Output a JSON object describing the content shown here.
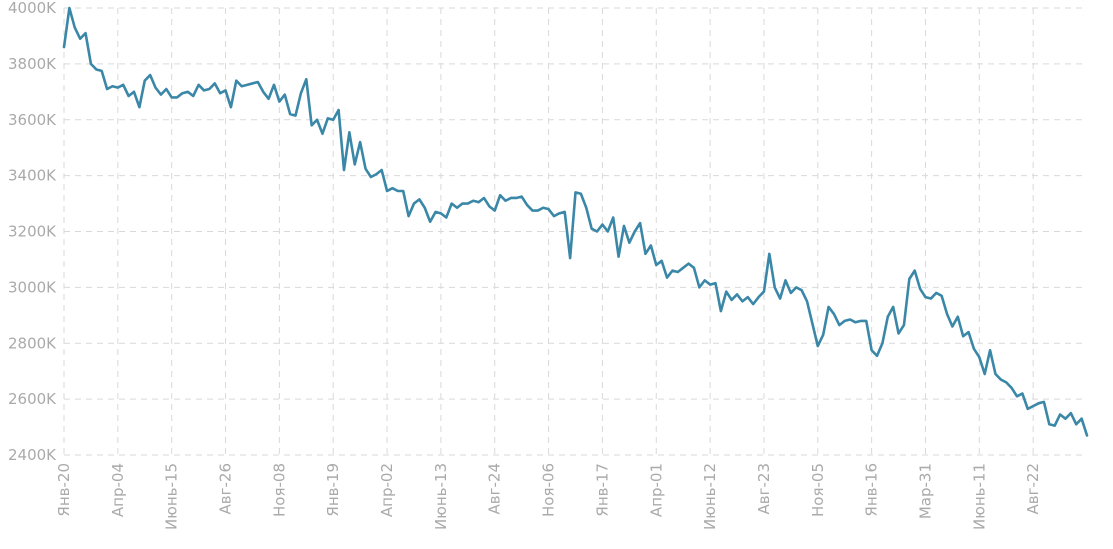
{
  "chart_data": {
    "type": "line",
    "grid": true,
    "y_tick_labels": [
      "4000K",
      "3800K",
      "3600K",
      "3400K",
      "3200K",
      "3000K",
      "2800K",
      "2600K",
      "2400K"
    ],
    "y_tick_values": [
      4000,
      3800,
      3600,
      3400,
      3200,
      3000,
      2800,
      2600,
      2400
    ],
    "ylim": [
      2400,
      4000
    ],
    "x_tick_labels": [
      "Янв-20",
      "Апр-04",
      "Июнь-15",
      "Авг-26",
      "Ноя-08",
      "Янв-19",
      "Апр-02",
      "Июнь-13",
      "Авг-24",
      "Ноя-06",
      "Янв-17",
      "Апр-01",
      "Июнь-12",
      "Авг-23",
      "Ноя-05",
      "Янв-16",
      "Мар-31",
      "Июнь-11",
      "Авг-22"
    ],
    "x_tick_indices": [
      0,
      10,
      20,
      30,
      40,
      50,
      60,
      70,
      80,
      90,
      100,
      110,
      120,
      130,
      140,
      150,
      160,
      170,
      180
    ],
    "series": [
      {
        "color": "#3a87a8",
        "values": [
          3860,
          4000,
          3930,
          3890,
          3910,
          3800,
          3780,
          3775,
          3710,
          3720,
          3715,
          3725,
          3685,
          3700,
          3645,
          3740,
          3760,
          3715,
          3690,
          3710,
          3680,
          3680,
          3695,
          3700,
          3685,
          3725,
          3705,
          3710,
          3730,
          3695,
          3705,
          3645,
          3740,
          3720,
          3725,
          3730,
          3735,
          3700,
          3675,
          3725,
          3665,
          3690,
          3620,
          3615,
          3695,
          3745,
          3580,
          3600,
          3550,
          3605,
          3600,
          3635,
          3420,
          3555,
          3440,
          3520,
          3425,
          3395,
          3405,
          3420,
          3345,
          3355,
          3345,
          3345,
          3255,
          3300,
          3315,
          3285,
          3235,
          3270,
          3265,
          3250,
          3300,
          3285,
          3300,
          3300,
          3310,
          3305,
          3320,
          3290,
          3275,
          3330,
          3310,
          3320,
          3320,
          3325,
          3295,
          3275,
          3275,
          3285,
          3280,
          3255,
          3265,
          3270,
          3105,
          3340,
          3335,
          3285,
          3210,
          3200,
          3225,
          3200,
          3250,
          3110,
          3220,
          3160,
          3200,
          3230,
          3120,
          3150,
          3080,
          3095,
          3035,
          3060,
          3055,
          3070,
          3085,
          3070,
          3000,
          3025,
          3010,
          3015,
          2915,
          2985,
          2955,
          2975,
          2950,
          2965,
          2940,
          2965,
          2985,
          3120,
          3000,
          2960,
          3025,
          2980,
          3000,
          2990,
          2950,
          2870,
          2790,
          2830,
          2930,
          2905,
          2865,
          2880,
          2885,
          2875,
          2880,
          2880,
          2775,
          2755,
          2800,
          2895,
          2930,
          2835,
          2865,
          3030,
          3060,
          2995,
          2965,
          2960,
          2980,
          2970,
          2905,
          2860,
          2895,
          2825,
          2840,
          2780,
          2750,
          2690,
          2775,
          2690,
          2670,
          2660,
          2640,
          2610,
          2620,
          2565,
          2575,
          2585,
          2590,
          2510,
          2505,
          2545,
          2530,
          2550,
          2510,
          2530,
          2470
        ]
      }
    ]
  }
}
